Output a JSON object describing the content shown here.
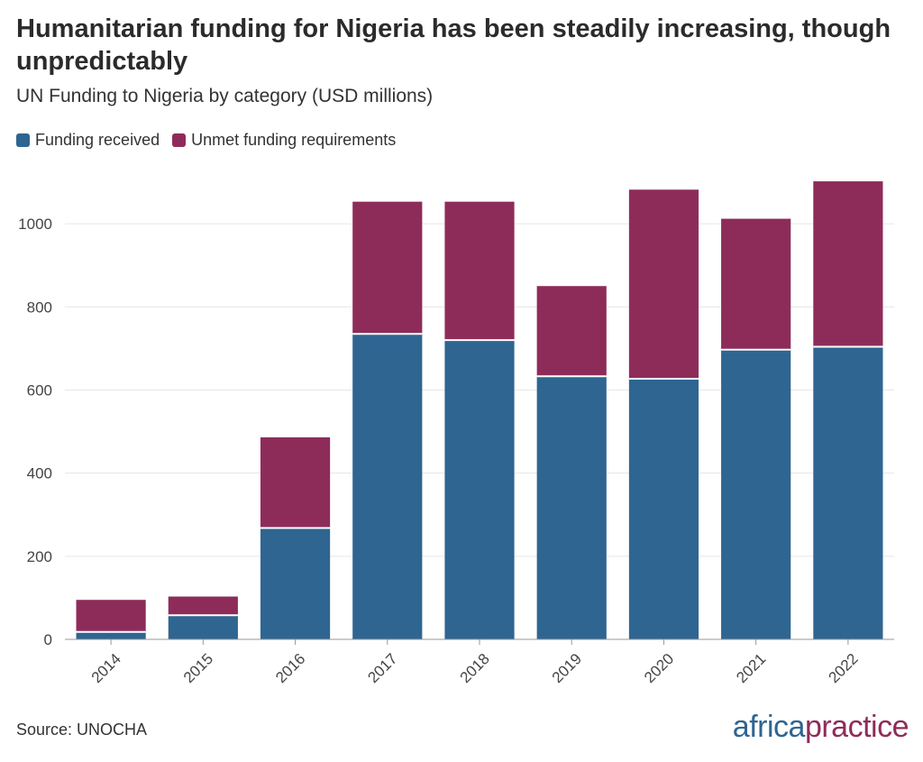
{
  "title": "Humanitarian funding for Nigeria has been steadily increasing, though unpredictably",
  "subtitle": "UN Funding to Nigeria by category (USD millions)",
  "source": "Source: UNOCHA",
  "brand": {
    "part1": "africa",
    "part2": "practice"
  },
  "colors": {
    "received": "#2f6591",
    "unmet": "#8e2c59"
  },
  "chart_data": {
    "type": "bar",
    "stacked": true,
    "categories": [
      "2014",
      "2015",
      "2016",
      "2017",
      "2018",
      "2019",
      "2020",
      "2021",
      "2022"
    ],
    "series": [
      {
        "name": "Funding received",
        "values": [
          18,
          58,
          268,
          735,
          720,
          633,
          627,
          697,
          704
        ]
      },
      {
        "name": "Unmet funding requirements",
        "values": [
          77,
          45,
          218,
          318,
          333,
          217,
          455,
          315,
          398
        ]
      }
    ],
    "ylim": [
      0,
      1100
    ],
    "yticks": [
      0,
      200,
      400,
      600,
      800,
      1000
    ],
    "grid": true,
    "legend": "top-left"
  }
}
